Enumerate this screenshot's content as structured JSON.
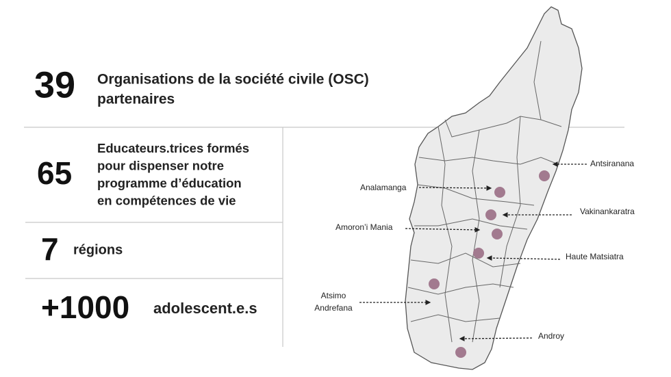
{
  "stats": [
    {
      "number": "39",
      "lines": [
        "Organisations de la société civile (OSC)",
        "partenaires"
      ]
    },
    {
      "number": "65",
      "lines": [
        "Educateurs.trices formés",
        "pour dispenser notre",
        "programme d’éducation",
        "en compétences de vie"
      ]
    },
    {
      "number": "7",
      "lines": [
        "régions"
      ]
    },
    {
      "number": "+1000",
      "lines": [
        "adolescent.e.s"
      ]
    }
  ],
  "map": {
    "regions": [
      {
        "lines": [
          "Antsiranana"
        ]
      },
      {
        "lines": [
          "Analamanga"
        ]
      },
      {
        "lines": [
          "Vakinankaratra"
        ]
      },
      {
        "lines": [
          "Amoron’i Mania"
        ]
      },
      {
        "lines": [
          "Haute Matsiatra"
        ]
      },
      {
        "lines": [
          "Atsimo",
          "Andrefana"
        ]
      },
      {
        "lines": [
          "Androy"
        ]
      }
    ]
  }
}
